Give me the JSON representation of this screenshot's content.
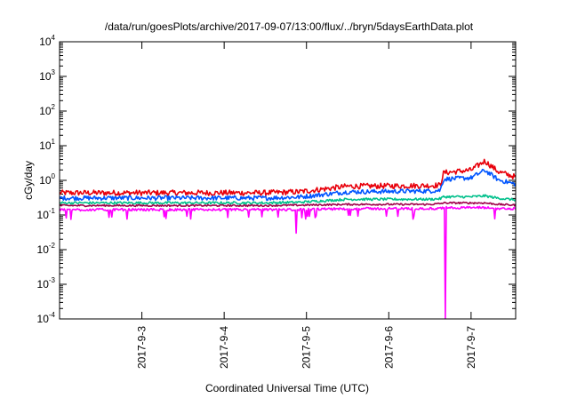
{
  "chart_data": {
    "type": "line",
    "title": "/data/run/goesPlots/archive/2017-09-07/13:00/flux/../bryn/5daysEarthData.plot",
    "xlabel": "Coordinated Universal Time (UTC)",
    "ylabel": "cGy/day",
    "y_scale": "log",
    "ylim": [
      0.0001,
      10000
    ],
    "xlim": [
      "2017-09-02 00:00",
      "2017-09-07 13:00"
    ],
    "grid": false,
    "legend": "none",
    "x_ticks": [
      "2017-9-3",
      "2017-9-4",
      "2017-9-5",
      "2017-9-6",
      "2017-9-7"
    ],
    "y_ticks": [
      {
        "base": "10",
        "exp": "-4"
      },
      {
        "base": "10",
        "exp": "-3"
      },
      {
        "base": "10",
        "exp": "-2"
      },
      {
        "base": "10",
        "exp": "-1"
      },
      {
        "base": "10",
        "exp": "0"
      },
      {
        "base": "10",
        "exp": "1"
      },
      {
        "base": "10",
        "exp": "2"
      },
      {
        "base": "10",
        "exp": "3"
      },
      {
        "base": "10",
        "exp": "4"
      }
    ],
    "x": [
      "2017-09-02 00:00",
      "2017-09-04 12:00",
      "2017-09-04 22:00",
      "2017-09-05 12:00",
      "2017-09-06 12:00",
      "2017-09-06 15:00",
      "2017-09-06 16:00",
      "2017-09-07 00:00",
      "2017-09-07 04:00",
      "2017-09-07 08:00",
      "2017-09-07 13:00"
    ],
    "series": [
      {
        "color": "#e8000b",
        "values": [
          0.42,
          0.42,
          0.45,
          0.65,
          0.68,
          0.7,
          1.6,
          1.9,
          3.5,
          1.7,
          1.2
        ]
      },
      {
        "color": "#0055ff",
        "values": [
          0.3,
          0.3,
          0.32,
          0.45,
          0.48,
          0.5,
          1.05,
          1.15,
          1.9,
          1.0,
          0.75
        ]
      },
      {
        "color": "#00c08b",
        "values": [
          0.22,
          0.22,
          0.23,
          0.28,
          0.28,
          0.29,
          0.33,
          0.33,
          0.35,
          0.3,
          0.27
        ]
      },
      {
        "color": "#a0004a",
        "values": [
          0.185,
          0.185,
          0.19,
          0.2,
          0.2,
          0.21,
          0.22,
          0.22,
          0.22,
          0.2,
          0.19
        ]
      },
      {
        "color": "#ff00ff",
        "values": [
          0.14,
          0.14,
          0.14,
          0.15,
          0.15,
          0.15,
          0.16,
          0.16,
          0.16,
          0.15,
          0.15
        ]
      }
    ],
    "annotations": [
      {
        "series": 4,
        "x": "2017-09-04 21:00",
        "y": 0.03
      },
      {
        "series": 4,
        "x": "2017-09-06 16:30",
        "y": 0.0001
      }
    ]
  }
}
